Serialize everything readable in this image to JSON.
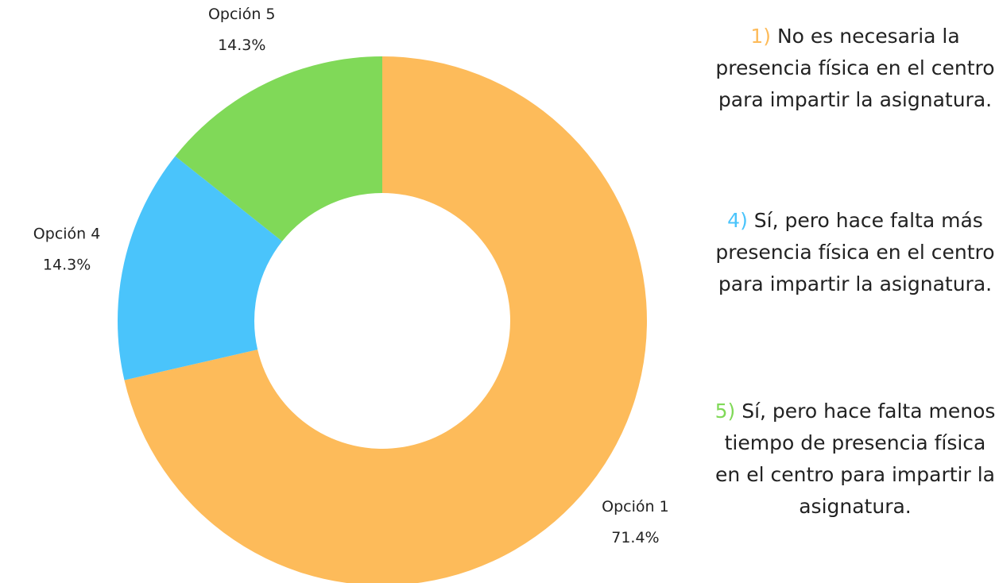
{
  "chart_data": {
    "type": "donut",
    "categories": [
      "Opción 1",
      "Opción 4",
      "Opción 5"
    ],
    "values": [
      71.4,
      14.3,
      14.3
    ],
    "value_labels": [
      "71.4%",
      "14.3%",
      "14.3%"
    ],
    "colors": [
      "#fdbb5a",
      "#4ac4fb",
      "#80d958"
    ],
    "notes": [
      {
        "marker": "1)",
        "text": "No es necesaria la presencia física en el centro para impartir la asignatura."
      },
      {
        "marker": "4)",
        "text": "Sí, pero hace falta más presencia física en el centro para impartir la asignatura."
      },
      {
        "marker": "5)",
        "text": "Sí, pero hace falta menos tiempo de presencia física en el centro para impartir la asignatura."
      }
    ]
  }
}
